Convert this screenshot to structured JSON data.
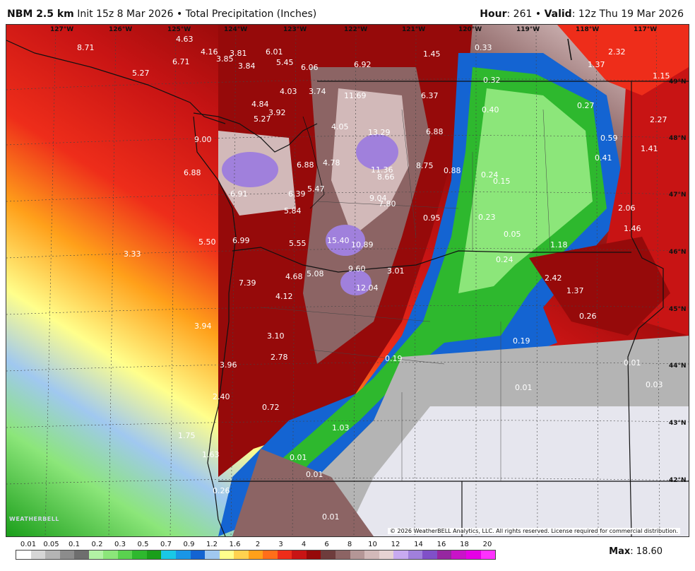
{
  "header": {
    "model": "NBM 2.5 km",
    "init": "Init 15z 8 Mar 2026",
    "bullet": "•",
    "product": "Total Precipitation (Inches)",
    "hour_label": "Hour",
    "hour_value": ": 261",
    "valid_label": "Valid",
    "valid_value": ": 12z Thu 19 Mar 2026"
  },
  "grid": {
    "longitudes": [
      "127°W",
      "126°W",
      "125°W",
      "124°W",
      "123°W",
      "122°W",
      "121°W",
      "120°W",
      "119°W",
      "118°W",
      "117°W"
    ],
    "latitudes": [
      "49°N",
      "48°N",
      "47°N",
      "46°N",
      "45°N",
      "44°N",
      "43°N",
      "42°N"
    ]
  },
  "values": [
    "8.71",
    "4.63",
    "4.16",
    "3.81",
    "3.85",
    "3.84",
    "6.71",
    "5.27",
    "6.01",
    "5.45",
    "6.06",
    "6.92",
    "1.45",
    "0.33",
    "2.32",
    "1.37",
    "1.15",
    "4.03",
    "3.74",
    "4.84",
    "3.92",
    "5.27",
    "11.69",
    "6.37",
    "0.32",
    "0.40",
    "0.27",
    "2.27",
    "4.05",
    "13.29",
    "6.88",
    "0.59",
    "1.41",
    "9.00",
    "6.88",
    "4.78",
    "11.36",
    "8.75",
    "8.66",
    "0.88",
    "0.24",
    "0.15",
    "0.41",
    "6.88",
    "6.39",
    "5.47",
    "9.04",
    "7.80",
    "6.91",
    "5.84",
    "0.95",
    "0.23",
    "0.05",
    "2.06",
    "1.46",
    "5.50",
    "6.99",
    "5.55",
    "15.40",
    "10.89",
    "1.18",
    "3.33",
    "9.60",
    "3.01",
    "0.24",
    "5.08",
    "4.68",
    "12.04",
    "2.42",
    "1.37",
    "7.39",
    "4.12",
    "0.26",
    "3.94",
    "3.10",
    "0.19",
    "2.78",
    "0.19",
    "0.01",
    "3.96",
    "0.03",
    "0.01",
    "2.40",
    "0.72",
    "1.03",
    "1.75",
    "1.63",
    "0.01",
    "0.01",
    "0.26",
    "0.01"
  ],
  "legend": {
    "ticks": [
      "0.01",
      "0.05",
      "0.1",
      "0.2",
      "0.3",
      "0.5",
      "0.7",
      "0.9",
      "1.2",
      "1.6",
      "2",
      "3",
      "4",
      "6",
      "8",
      "10",
      "12",
      "14",
      "16",
      "18",
      "20"
    ],
    "colors": [
      "#ffffff",
      "#d6d6d6",
      "#b4b4b4",
      "#8c8c8c",
      "#6e6e6e",
      "#b2f2a5",
      "#8ce67a",
      "#5ad24f",
      "#2eb82e",
      "#1a9e1a",
      "#1ac8e6",
      "#1a96e6",
      "#1464d2",
      "#a0c8f0",
      "#ffff8c",
      "#ffd24f",
      "#ffa01a",
      "#ff6e1a",
      "#ee2d1a",
      "#c81414",
      "#960a0a",
      "#6e3c3c",
      "#8c6464",
      "#b49696",
      "#d2b9b9",
      "#e6d2d2",
      "#c8aaf0",
      "#a080dc",
      "#8050c8",
      "#9628a0",
      "#c814c8",
      "#e600e6",
      "#ff32ff"
    ],
    "max_label": "Max",
    "max_value": ": 18.60"
  },
  "copyright": "© 2026 WeatherBELL Analytics, LLC. All rights reserved. License required for commercial distribution.",
  "logo": "WEATHERBELL"
}
